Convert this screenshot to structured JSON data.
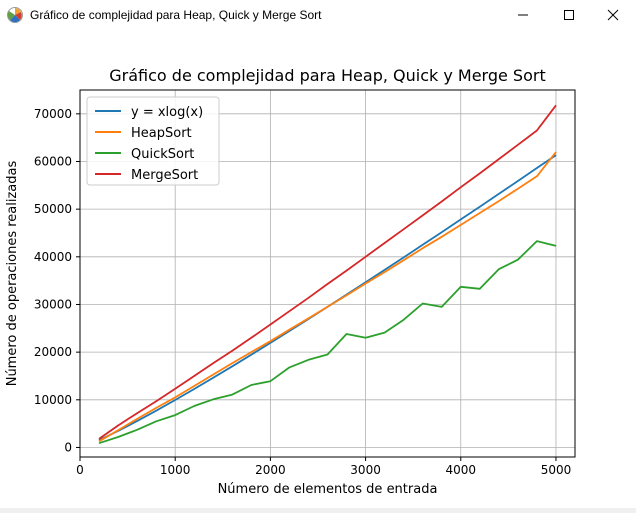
{
  "window": {
    "title": "Gráfico de complejidad para Heap, Quick y Merge Sort",
    "icons": {
      "app": "matplotlib-figure-icon",
      "minimize": "minimize-icon",
      "maximize": "maximize-icon",
      "close": "close-icon"
    }
  },
  "colors": {
    "series": [
      "#1f77b4",
      "#ff7f0e",
      "#2ca02c",
      "#d62728"
    ],
    "grid": "#b0b0b0"
  },
  "chart_data": {
    "type": "line",
    "title": "Gráfico de complejidad para Heap, Quick y Merge Sort",
    "xlabel": "Número de elementos de entrada",
    "ylabel": "Número de operaciones realizadas",
    "xlim": [
      0,
      5200
    ],
    "ylim": [
      -2000,
      75000
    ],
    "xticks": [
      "0",
      "1000",
      "2000",
      "3000",
      "4000",
      "5000"
    ],
    "yticks": [
      "0",
      "10000",
      "20000",
      "30000",
      "40000",
      "50000",
      "60000",
      "70000"
    ],
    "grid": true,
    "legend": "top-left",
    "x": [
      200,
      400,
      600,
      800,
      1000,
      1200,
      1400,
      1600,
      1800,
      2000,
      2200,
      2400,
      2600,
      2800,
      3000,
      3200,
      3400,
      3600,
      3800,
      4000,
      4200,
      4400,
      4600,
      4800,
      5000
    ],
    "series": [
      {
        "name": "y = xlog(x)",
        "values": [
          1529,
          3458,
          5537,
          7715,
          9966,
          12274,
          14632,
          17032,
          19468,
          21932,
          24430,
          26953,
          29500,
          32066,
          34657,
          37262,
          39885,
          42521,
          45173,
          47841,
          50519,
          53211,
          55913,
          58627,
          61350
        ]
      },
      {
        "name": "HeapSort",
        "values": [
          1300,
          3600,
          6000,
          8300,
          10500,
          12900,
          15300,
          17700,
          20000,
          22300,
          24700,
          27100,
          29500,
          31900,
          34400,
          36800,
          39300,
          41800,
          44200,
          46700,
          49200,
          51700,
          54300,
          56900,
          62000
        ]
      },
      {
        "name": "QuickSort",
        "values": [
          900,
          2200,
          3700,
          5500,
          6800,
          8700,
          10100,
          11100,
          13100,
          13900,
          16800,
          18400,
          19500,
          23800,
          23000,
          24100,
          26800,
          30200,
          29500,
          33700,
          33300,
          37400,
          39400,
          43300,
          42300
        ]
      },
      {
        "name": "MergeSort",
        "values": [
          1800,
          4600,
          7200,
          9700,
          12300,
          15000,
          17700,
          20300,
          23000,
          25800,
          28600,
          31400,
          34300,
          37100,
          40000,
          42900,
          45800,
          48700,
          51600,
          54600,
          57500,
          60500,
          63500,
          66500,
          71800
        ]
      }
    ]
  }
}
